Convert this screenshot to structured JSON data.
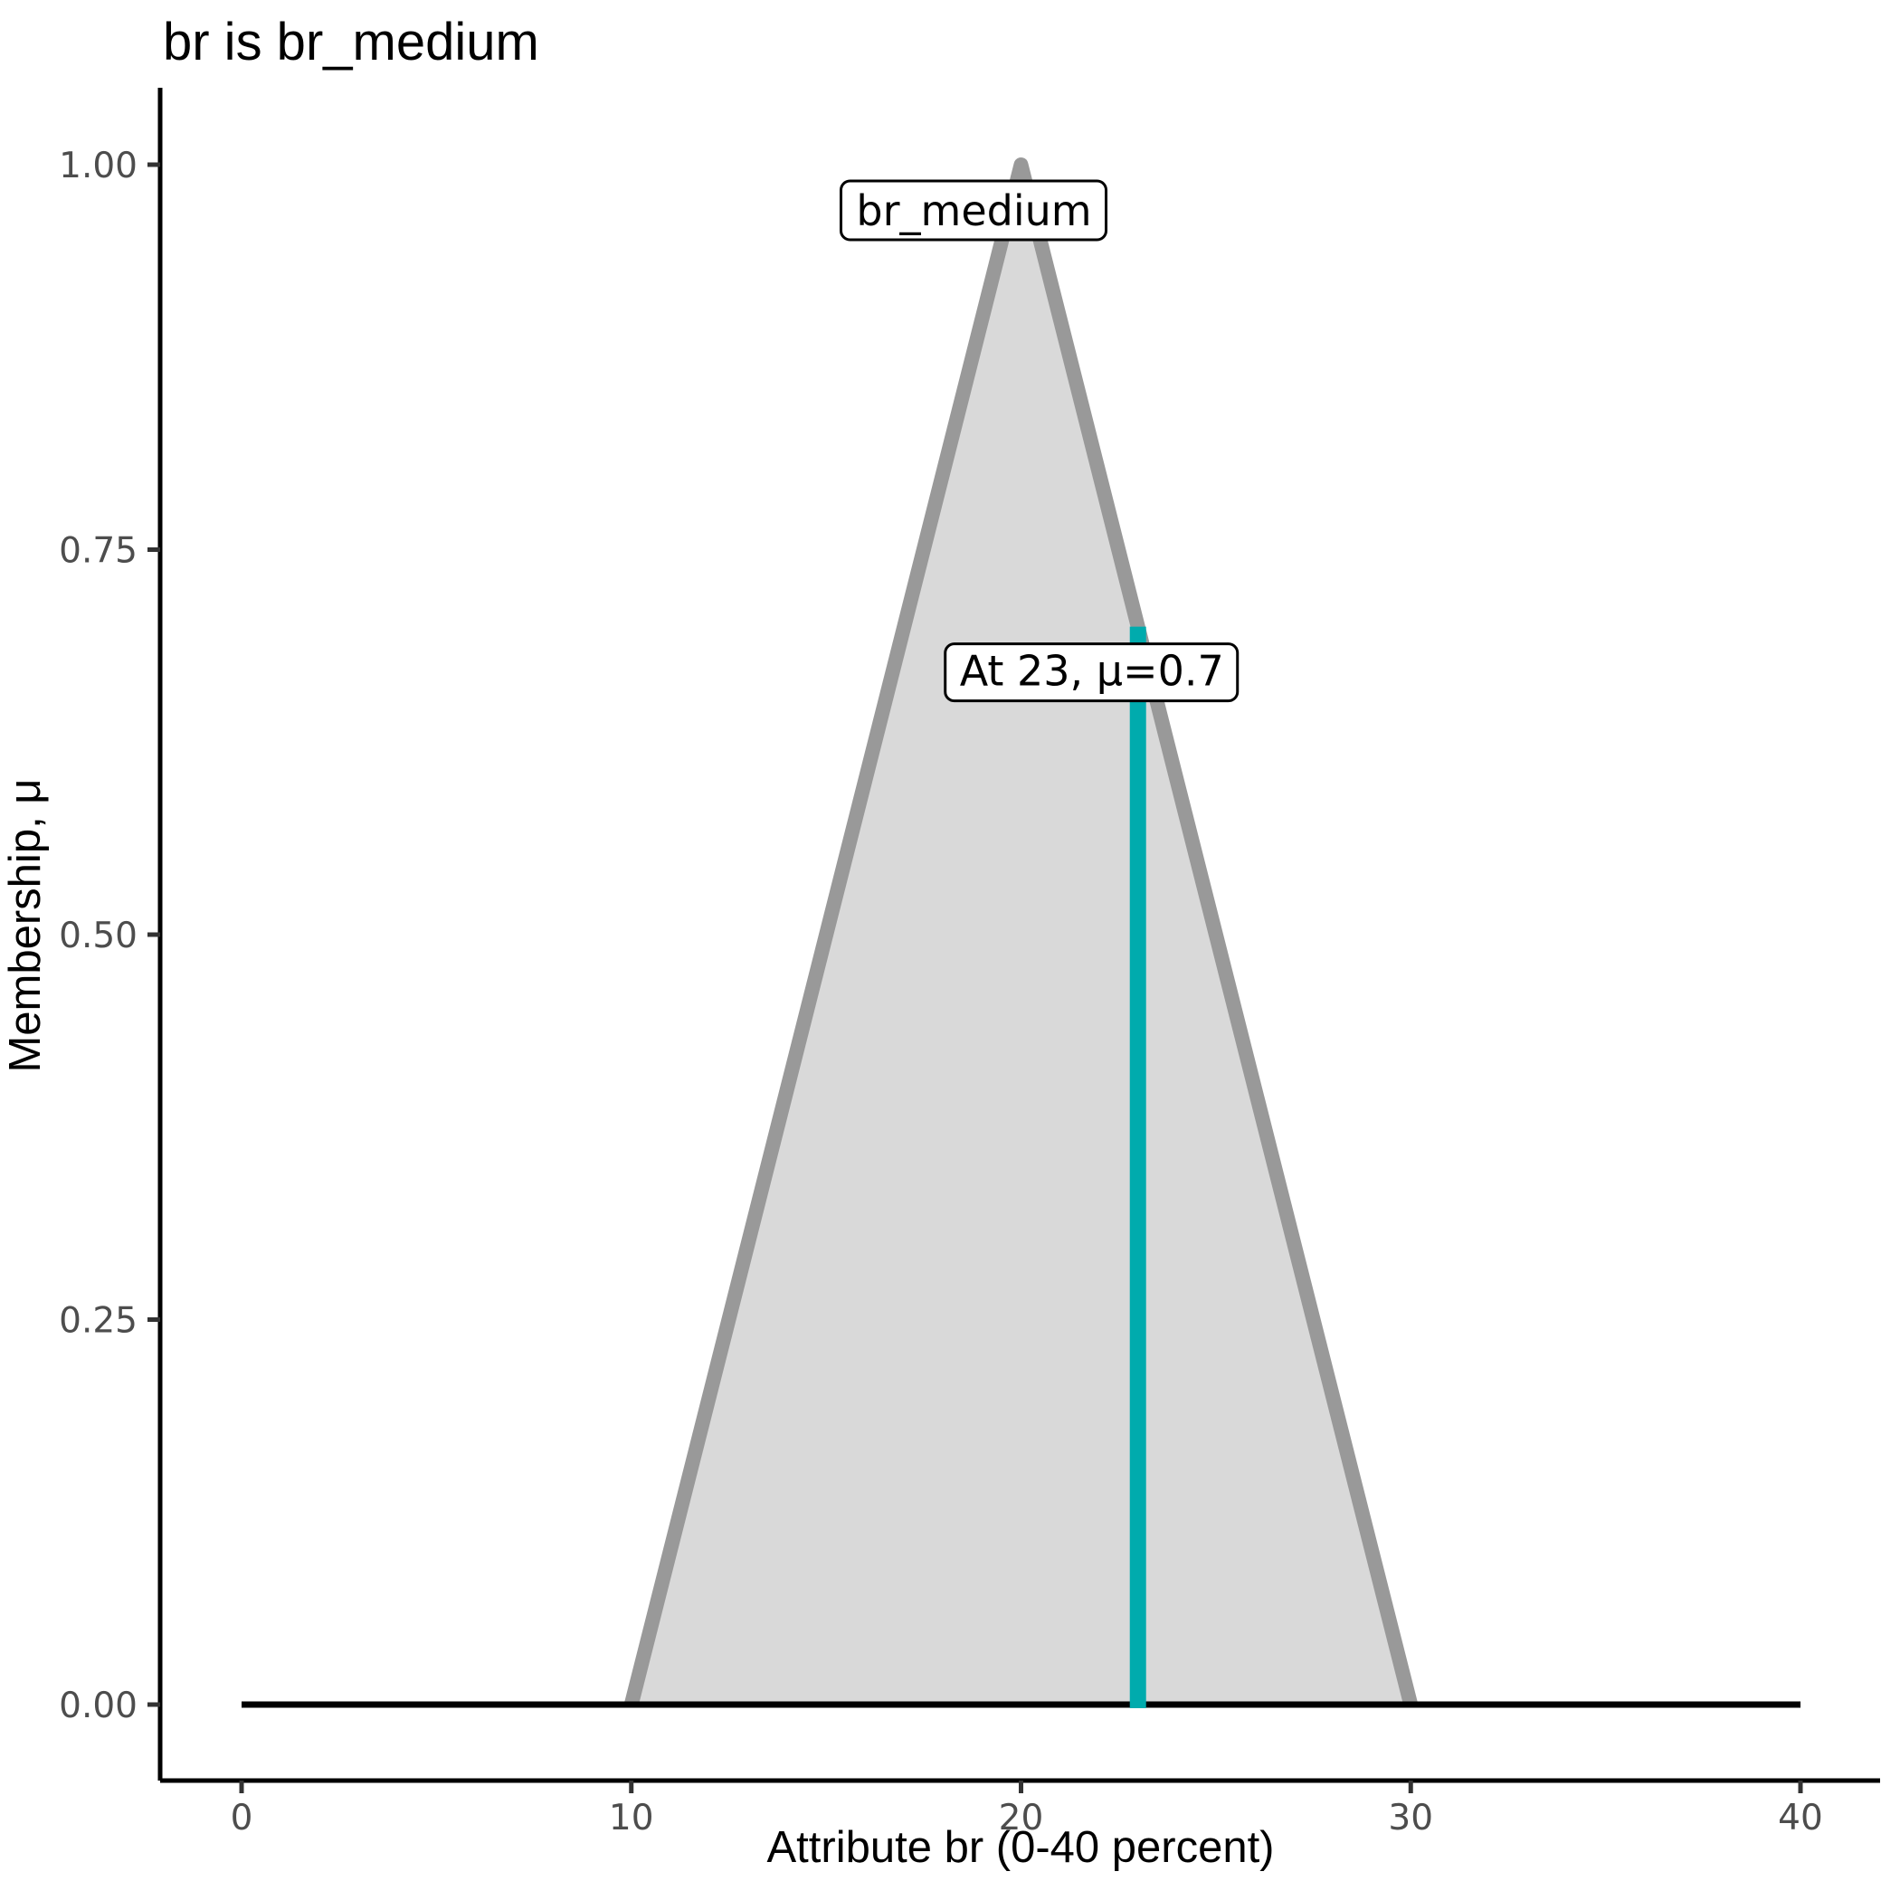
{
  "figure": {
    "background": "#ffffff"
  },
  "chart_data": {
    "type": "area",
    "title": "br is br_medium",
    "xlabel": "Attribute br (0-40 percent)",
    "ylabel": "Membership, μ",
    "xlim": [
      0,
      40
    ],
    "ylim": [
      0,
      1
    ],
    "grid": false,
    "legend": "none",
    "x_ticks": [
      {
        "value": 0,
        "label": "0"
      },
      {
        "value": 10,
        "label": "10"
      },
      {
        "value": 20,
        "label": "20"
      },
      {
        "value": 30,
        "label": "30"
      },
      {
        "value": 40,
        "label": "40"
      }
    ],
    "y_ticks": [
      {
        "value": 0.0,
        "label": "0.00"
      },
      {
        "value": 0.25,
        "label": "0.25"
      },
      {
        "value": 0.5,
        "label": "0.50"
      },
      {
        "value": 0.75,
        "label": "0.75"
      },
      {
        "value": 1.0,
        "label": "1.00"
      }
    ],
    "series": [
      {
        "name": "br_medium",
        "shape": "triangle",
        "points": [
          [
            10,
            0
          ],
          [
            20,
            1
          ],
          [
            30,
            0
          ]
        ],
        "fill_color": "#d9d9d9",
        "stroke_color": "#999999"
      }
    ],
    "baseline": {
      "x_from": 0,
      "x_to": 40,
      "mu": 0,
      "color": "#000000"
    },
    "marker": {
      "x": 23,
      "mu": 0.7,
      "label": "At 23, μ=0.7",
      "color": "#00abad"
    },
    "set_label": {
      "text": "br_medium",
      "anchor_x": 20,
      "anchor_mu": 1
    },
    "colors": {
      "axis": "#000000",
      "tick": "#333333",
      "tick_label": "#4d4d4d",
      "label_box_fill": "#ffffff",
      "label_box_border": "#000000"
    }
  }
}
